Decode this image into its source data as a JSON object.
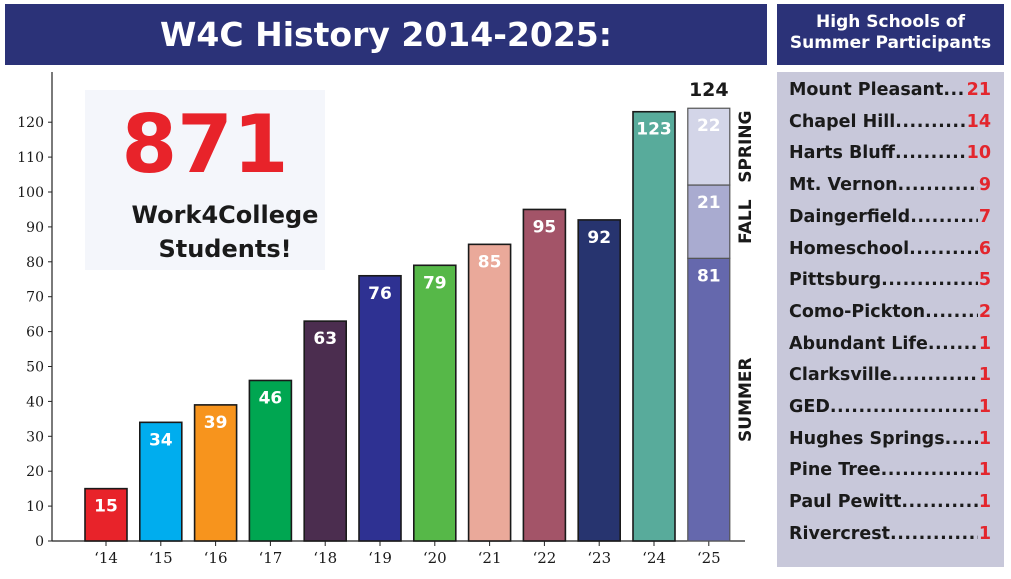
{
  "title": "W4C History 2014-2025:",
  "highlight": {
    "number": "871",
    "caption_line1": "Work4College",
    "caption_line2": "Students!"
  },
  "high_schools": {
    "title_line1": "High Schools of",
    "title_line2": "Summer Participants",
    "items": [
      {
        "name": "Mount Pleasant",
        "count": "21"
      },
      {
        "name": "Chapel Hill",
        "count": "14"
      },
      {
        "name": "Harts Bluff",
        "count": "10"
      },
      {
        "name": "Mt. Vernon",
        "count": "9"
      },
      {
        "name": "Daingerfield",
        "count": "7"
      },
      {
        "name": "Homeschool",
        "count": "6"
      },
      {
        "name": "Pittsburg",
        "count": "5"
      },
      {
        "name": "Como-Pickton",
        "count": "2"
      },
      {
        "name": "Abundant Life",
        "count": "1"
      },
      {
        "name": "Clarksville",
        "count": "1"
      },
      {
        "name": "GED",
        "count": "1"
      },
      {
        "name": "Hughes Springs",
        "count": "1"
      },
      {
        "name": "Pine Tree",
        "count": "1"
      },
      {
        "name": "Paul Pewitt",
        "count": "1"
      },
      {
        "name": "Rivercrest",
        "count": "1"
      }
    ]
  },
  "chart_data": {
    "type": "bar",
    "title": "W4C History 2014-2025:",
    "xlabel": "",
    "ylabel": "",
    "ylim": [
      0,
      135
    ],
    "yticks": [
      0,
      10,
      20,
      30,
      40,
      50,
      60,
      70,
      80,
      90,
      100,
      110,
      120
    ],
    "grid": false,
    "categories": [
      "‘14",
      "‘15",
      "‘16",
      "‘17",
      "‘18",
      "‘19",
      "‘20",
      "‘21",
      "‘22",
      "‘23",
      "‘24"
    ],
    "values": [
      15,
      34,
      39,
      46,
      63,
      76,
      79,
      85,
      95,
      92,
      123
    ],
    "colors": [
      "#e8232a",
      "#00adee",
      "#f7941d",
      "#00a651",
      "#4b2d4f",
      "#2e3192",
      "#56b848",
      "#eaa99a",
      "#a35468",
      "#27346f",
      "#58ab9b"
    ],
    "label_colors": [
      "#ffffff",
      "#ffffff",
      "#ffffff",
      "#ffffff",
      "#ffffff",
      "#ffffff",
      "#ffffff",
      "#ffffff",
      "#ffffff",
      "#ffffff",
      "#ffffff"
    ],
    "stacked_bar": {
      "category": "‘25",
      "total": 124,
      "segments": [
        {
          "name": "SUMMER",
          "value": 81,
          "color": "#6568ad"
        },
        {
          "name": "FALL",
          "value": 21,
          "color": "#a9abd0"
        },
        {
          "name": "SPRING",
          "value": 22,
          "color": "#d3d5e8"
        }
      ]
    }
  }
}
